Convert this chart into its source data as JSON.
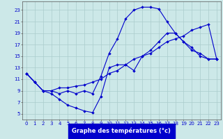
{
  "xlabel": "Graphe des températures (°c)",
  "bg_color": "#cce8e8",
  "grid_color": "#aacccc",
  "line_color": "#0000cc",
  "xlim": [
    -0.5,
    23.5
  ],
  "ylim": [
    4.0,
    24.5
  ],
  "x_ticks": [
    0,
    1,
    2,
    3,
    4,
    5,
    6,
    7,
    8,
    9,
    10,
    11,
    12,
    13,
    14,
    15,
    16,
    17,
    18,
    19,
    20,
    21,
    22,
    23
  ],
  "y_ticks": [
    5,
    7,
    9,
    11,
    13,
    15,
    17,
    19,
    21,
    23
  ],
  "tick_fontsize": 5.0,
  "xlabel_fontsize": 6.0,
  "line1": {
    "x": [
      0,
      1,
      2,
      3,
      4,
      5,
      6,
      7,
      8,
      9,
      10,
      11,
      12,
      13,
      14,
      15,
      16,
      17,
      18,
      19,
      20,
      21,
      22,
      23
    ],
    "y": [
      12.0,
      10.5,
      9.0,
      8.5,
      7.5,
      6.5,
      6.0,
      5.5,
      5.2,
      8.0,
      13.0,
      13.5,
      13.5,
      12.5,
      15.0,
      16.0,
      17.5,
      19.0,
      19.0,
      17.5,
      16.5,
      15.0,
      14.5,
      14.5
    ]
  },
  "line2": {
    "x": [
      0,
      1,
      2,
      3,
      4,
      5,
      6,
      7,
      8,
      9,
      10,
      11,
      12,
      13,
      14,
      15,
      16,
      17,
      18,
      19,
      20,
      21,
      22,
      23
    ],
    "y": [
      12.0,
      10.5,
      9.0,
      9.0,
      9.5,
      9.5,
      9.8,
      10.0,
      10.5,
      11.0,
      12.0,
      12.5,
      13.5,
      14.5,
      15.0,
      15.5,
      16.5,
      17.5,
      18.0,
      18.5,
      19.5,
      20.0,
      20.5,
      14.5
    ]
  },
  "line3": {
    "x": [
      0,
      1,
      2,
      3,
      4,
      5,
      6,
      7,
      8,
      9,
      10,
      11,
      12,
      13,
      14,
      15,
      16,
      17,
      18,
      19,
      20,
      21,
      22,
      23
    ],
    "y": [
      12.0,
      10.5,
      9.0,
      9.0,
      8.5,
      9.0,
      8.5,
      9.0,
      8.5,
      11.5,
      15.5,
      18.0,
      21.5,
      23.0,
      23.5,
      23.5,
      23.2,
      21.0,
      19.0,
      17.5,
      16.0,
      15.5,
      14.5,
      14.5
    ]
  }
}
